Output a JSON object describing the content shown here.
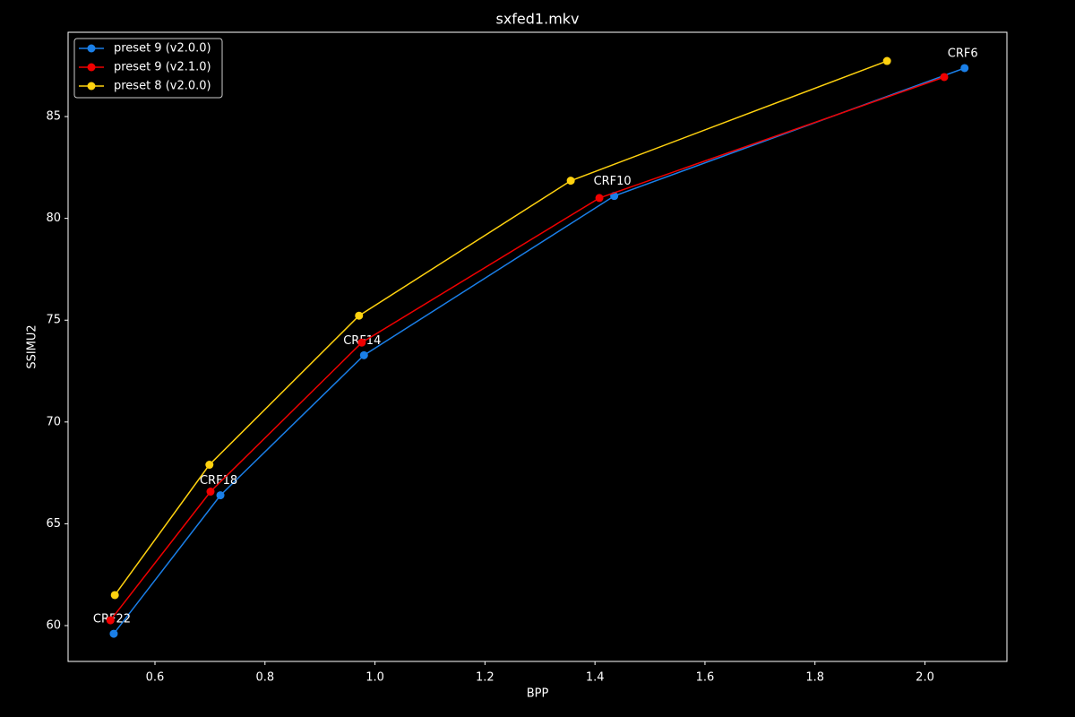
{
  "chart_data": {
    "type": "line",
    "title": "sxfed1.mkv",
    "xlabel": "BPP",
    "ylabel": "SSIMU2",
    "xlim": [
      0.442,
      2.149
    ],
    "ylim": [
      58.24,
      89.14
    ],
    "xticks": [
      0.6,
      0.8,
      {
        "value": 1,
        "label": "1.0"
      },
      1.2,
      1.4,
      1.6,
      1.8,
      {
        "value": 2,
        "label": "2.0"
      }
    ],
    "yticks": [
      60,
      65,
      70,
      75,
      80,
      85
    ],
    "legend": "upper left",
    "series": [
      {
        "name": "preset 9 (v2.0.0)",
        "color": "#1a7fe8",
        "x": [
          0.525,
          0.719,
          0.98,
          1.435,
          2.072
        ],
        "values": [
          59.6,
          66.4,
          73.28,
          81.1,
          87.38
        ],
        "labels": [
          "CRF22",
          "CRF18",
          "CRF14",
          "CRF10",
          "CRF6"
        ]
      },
      {
        "name": "preset 9 (v2.1.0)",
        "color": "#f00000",
        "x": [
          0.519,
          0.701,
          0.976,
          1.408,
          2.035
        ],
        "values": [
          60.26,
          66.58,
          73.9,
          81.0,
          86.94
        ]
      },
      {
        "name": "preset 8 (v2.0.0)",
        "color": "#ffd20f",
        "x": [
          0.527,
          0.699,
          0.971,
          1.356,
          1.931
        ],
        "values": [
          61.5,
          67.9,
          75.22,
          81.85,
          87.73
        ]
      }
    ]
  }
}
